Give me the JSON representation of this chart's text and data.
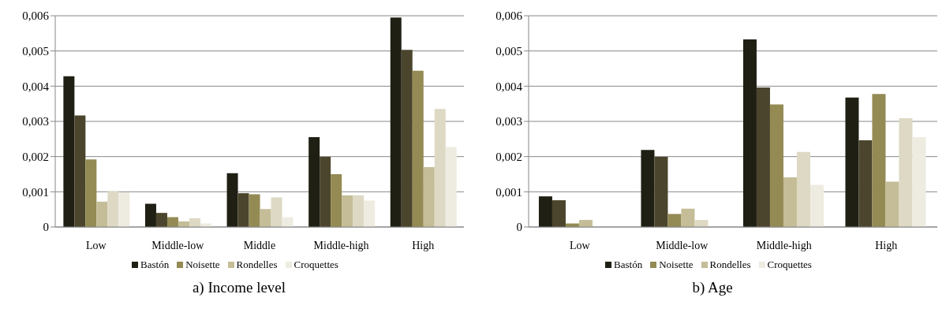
{
  "chart_data": [
    {
      "type": "bar",
      "title": "a) Income level",
      "categories": [
        "Low",
        "Middle-low",
        "Middle",
        "Middle-high",
        "High"
      ],
      "series": [
        {
          "name": "Bastón",
          "color": "#201f14",
          "values": [
            0.00428,
            0.00066,
            0.00153,
            0.00255,
            0.00595
          ]
        },
        {
          "color": "#4a452c",
          "values": [
            0.00317,
            0.0004,
            0.00096,
            0.00199,
            0.00503
          ]
        },
        {
          "name": "Noisette",
          "color": "#948a54",
          "values": [
            0.00192,
            0.00028,
            0.00093,
            0.0015,
            0.00444
          ]
        },
        {
          "name": "Rondelles",
          "color": "#c4bd97",
          "values": [
            0.00072,
            0.00016,
            0.00051,
            0.0009,
            0.0017
          ]
        },
        {
          "color": "#ddd9c4",
          "values": [
            0.00102,
            0.00025,
            0.00084,
            0.0009,
            0.00335
          ]
        },
        {
          "name": "Croquettes",
          "color": "#eeece1",
          "values": [
            0.00098,
            0.0001,
            0.00028,
            0.00075,
            0.00227
          ]
        }
      ],
      "ylim": [
        0,
        0.006
      ],
      "yticks": [
        0,
        {
          "value": 0.001,
          "label": "0,001"
        },
        {
          "value": 0.002,
          "label": "0,002"
        },
        {
          "value": 0.003,
          "label": "0,003"
        },
        {
          "value": 0.004,
          "label": "0,004"
        },
        {
          "value": 0.005,
          "label": "0,005"
        },
        {
          "value": 0.006,
          "label": "0,006"
        }
      ],
      "grid": "y",
      "legend": "bottom"
    },
    {
      "type": "bar",
      "title": "b) Age",
      "categories": [
        "Low",
        "Middle-low",
        "Middle-high",
        "High"
      ],
      "series": [
        {
          "name": "Bastón",
          "color": "#201f14",
          "values": [
            0.00087,
            0.00219,
            0.00533,
            0.00368
          ]
        },
        {
          "color": "#4a452c",
          "values": [
            0.00076,
            0.00199,
            0.00396,
            0.00246
          ]
        },
        {
          "name": "Noisette",
          "color": "#948a54",
          "values": [
            0.0001,
            0.00037,
            0.00348,
            0.00378
          ]
        },
        {
          "name": "Rondelles",
          "color": "#c4bd97",
          "values": [
            0.0002,
            0.00052,
            0.00141,
            0.00129
          ]
        },
        {
          "color": "#ddd9c4",
          "values": [
            0,
            0.0002,
            0.00213,
            0.00309
          ]
        },
        {
          "name": "Croquettes",
          "color": "#eeece1",
          "values": [
            0,
            0,
            0.0012,
            0.00255
          ]
        }
      ],
      "ylim": [
        0,
        0.006
      ],
      "yticks": [
        0,
        {
          "value": 0.001,
          "label": "0,001"
        },
        {
          "value": 0.002,
          "label": "0,002"
        },
        {
          "value": 0.003,
          "label": "0,003"
        },
        {
          "value": 0.004,
          "label": "0,004"
        },
        {
          "value": 0.005,
          "label": "0,005"
        },
        {
          "value": 0.006,
          "label": "0,006"
        }
      ],
      "grid": "y",
      "legend": "bottom"
    }
  ]
}
